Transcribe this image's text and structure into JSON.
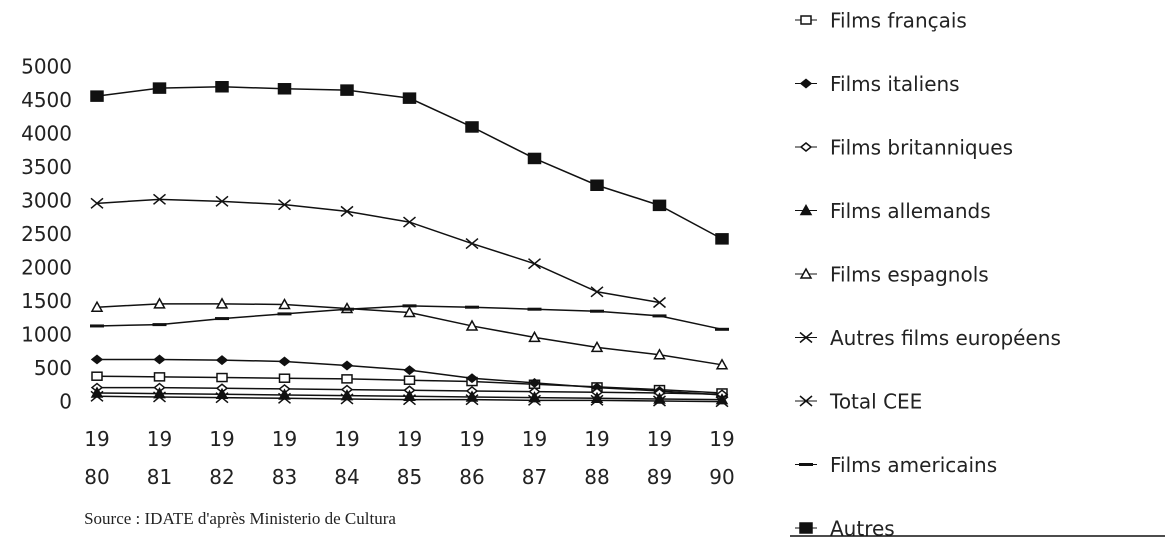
{
  "chart_data": {
    "type": "line",
    "source": "Source : IDATE d'après Ministerio de Cultura",
    "categories": [
      "1980",
      "1981",
      "1982",
      "1983",
      "1984",
      "1985",
      "1986",
      "1987",
      "1988",
      "1989",
      "1990"
    ],
    "ylim": [
      0,
      5000
    ],
    "yticks": [
      0,
      500,
      1000,
      1500,
      2000,
      2500,
      3000,
      3500,
      4000,
      4500,
      5000
    ],
    "grid": false,
    "legend": "right",
    "series": [
      {
        "name": "Films  français",
        "color": "#111111",
        "marker": "square",
        "values": [
          400,
          390,
          380,
          370,
          360,
          340,
          320,
          280,
          240,
          200,
          150
        ]
      },
      {
        "name": "Films  italiens",
        "color": "#111111",
        "marker": "diamond-filled",
        "values": [
          650,
          650,
          640,
          620,
          560,
          490,
          370,
          300,
          230,
          180,
          120
        ]
      },
      {
        "name": "Films  britanniques",
        "color": "#111111",
        "marker": "diamond-open",
        "values": [
          230,
          230,
          220,
          210,
          200,
          190,
          180,
          170,
          160,
          150,
          130
        ]
      },
      {
        "name": "Films  allemands",
        "color": "#111111",
        "marker": "triangle-filled",
        "values": [
          150,
          140,
          130,
          120,
          110,
          100,
          90,
          80,
          70,
          60,
          50
        ]
      },
      {
        "name": "Films  espagnols",
        "color": "#111111",
        "marker": "triangle-open",
        "values": [
          1430,
          1480,
          1480,
          1470,
          1410,
          1350,
          1150,
          980,
          830,
          720,
          570
        ]
      },
      {
        "name": "Autres  films  européens",
        "color": "#111111",
        "marker": "x",
        "values": [
          100,
          90,
          80,
          70,
          60,
          50,
          50,
          40,
          40,
          30,
          20
        ]
      },
      {
        "name": "Total CEE",
        "color": "#111111",
        "marker": "x",
        "values": [
          2980,
          3040,
          3010,
          2960,
          2860,
          2700,
          2380,
          2080,
          1660,
          1500,
          null
        ]
      },
      {
        "name": "Films  americains",
        "color": "#111111",
        "marker": "dash",
        "values": [
          1150,
          1170,
          1260,
          1330,
          1400,
          1450,
          1430,
          1400,
          1370,
          1300,
          1100
        ]
      },
      {
        "name": "Autres",
        "color": "#111111",
        "marker": "bar",
        "values": [
          4580,
          4700,
          4720,
          4690,
          4670,
          4550,
          4120,
          3650,
          3250,
          2950,
          2450
        ]
      }
    ]
  }
}
